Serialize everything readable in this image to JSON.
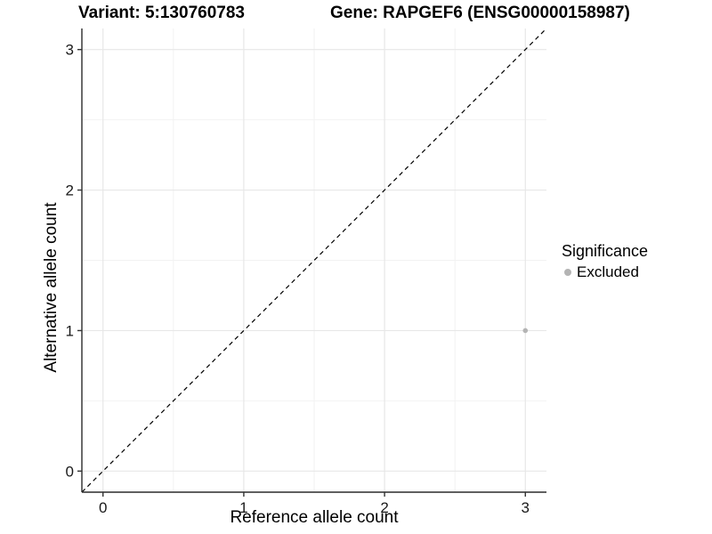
{
  "chart_data": {
    "type": "scatter",
    "titles": {
      "variant": "Variant: 5:130760783",
      "gene": "Gene: RAPGEF6 (ENSG00000158987)"
    },
    "xlabel": "Reference allele count",
    "ylabel": "Alternative allele count",
    "xlim": [
      -0.15,
      3.15
    ],
    "ylim": [
      -0.15,
      3.15
    ],
    "x_ticks": [
      0,
      1,
      2,
      3
    ],
    "y_ticks": [
      0,
      1,
      2,
      3
    ],
    "minor_gridlines": [
      0.5,
      1.5,
      2.5
    ],
    "grid": "major-and-minor",
    "identity_line": {
      "style": "dashed",
      "color": "#000000",
      "slope": 1,
      "intercept": 0
    },
    "series": [
      {
        "name": "Excluded",
        "color": "#b4b4b4",
        "points": [
          {
            "x": 3,
            "y": 1
          }
        ]
      }
    ],
    "legend": {
      "title": "Significance",
      "position": "right",
      "items": [
        {
          "label": "Excluded",
          "color": "#b4b4b4"
        }
      ]
    },
    "style": {
      "panel_background": "#ffffff",
      "major_grid_color": "#e7e7e7",
      "minor_grid_color": "#f2f2f2",
      "axis_line_color": "#2b2b2b",
      "tick_color": "#333333",
      "tick_label_color": "#1a1a1a",
      "point_radius": 2.8
    }
  }
}
